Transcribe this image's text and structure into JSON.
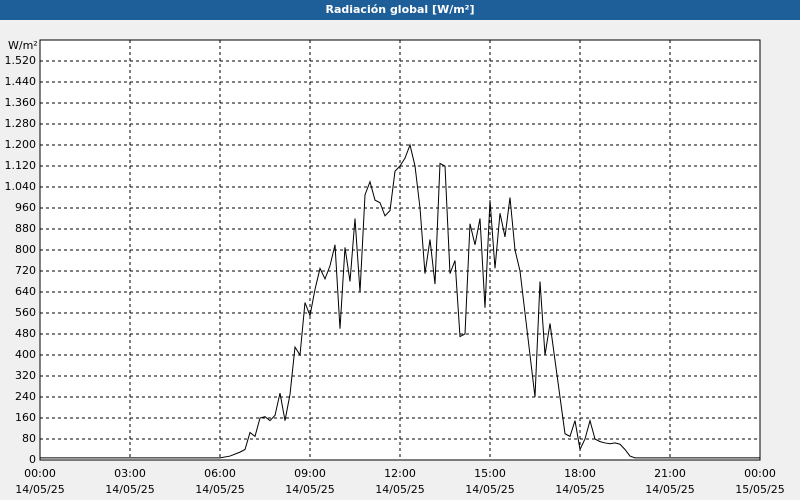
{
  "chart_data": {
    "type": "line",
    "title": "Radiación global [W/m²]",
    "y_label": "W/m²",
    "x": [
      0,
      360,
      380,
      400,
      410,
      420,
      430,
      440,
      450,
      460,
      470,
      480,
      490,
      500,
      510,
      520,
      530,
      540,
      550,
      560,
      570,
      580,
      590,
      600,
      610,
      620,
      630,
      640,
      650,
      660,
      670,
      680,
      690,
      700,
      710,
      720,
      730,
      740,
      750,
      760,
      770,
      780,
      790,
      800,
      810,
      820,
      830,
      840,
      850,
      860,
      870,
      880,
      890,
      900,
      910,
      920,
      930,
      940,
      950,
      960,
      970,
      980,
      990,
      1000,
      1010,
      1020,
      1030,
      1040,
      1050,
      1060,
      1070,
      1080,
      1090,
      1100,
      1110,
      1120,
      1130,
      1140,
      1150,
      1160,
      1170,
      1180,
      1190,
      1440
    ],
    "series": [
      {
        "name": "Radiación global",
        "color": "#000000",
        "values": [
          8,
          8,
          15,
          30,
          40,
          105,
          90,
          160,
          165,
          150,
          170,
          255,
          150,
          250,
          430,
          400,
          600,
          550,
          650,
          730,
          690,
          740,
          820,
          500,
          810,
          680,
          920,
          640,
          1010,
          1060,
          990,
          980,
          930,
          950,
          1100,
          1120,
          1150,
          1200,
          1120,
          960,
          710,
          840,
          670,
          1130,
          1120,
          710,
          760,
          470,
          480,
          900,
          820,
          920,
          580,
          990,
          730,
          940,
          850,
          1000,
          800,
          720,
          560,
          400,
          240,
          680,
          400,
          520,
          380,
          240,
          100,
          90,
          150,
          40,
          80,
          150,
          80,
          70,
          65,
          62,
          65,
          60,
          40,
          15,
          8,
          8
        ]
      }
    ],
    "xlim": [
      0,
      1440
    ],
    "ylim": [
      0,
      1600
    ],
    "xticks": [
      {
        "value": 0,
        "label": "00:00",
        "date": "14/05/25"
      },
      {
        "value": 180,
        "label": "03:00",
        "date": "14/05/25"
      },
      {
        "value": 360,
        "label": "06:00",
        "date": "14/05/25"
      },
      {
        "value": 540,
        "label": "09:00",
        "date": "14/05/25"
      },
      {
        "value": 720,
        "label": "12:00",
        "date": "14/05/25"
      },
      {
        "value": 900,
        "label": "15:00",
        "date": "14/05/25"
      },
      {
        "value": 1080,
        "label": "18:00",
        "date": "14/05/25"
      },
      {
        "value": 1260,
        "label": "21:00",
        "date": "14/05/25"
      },
      {
        "value": 1440,
        "label": "00:00",
        "date": "15/05/25"
      }
    ],
    "yticks": [
      0,
      80,
      160,
      240,
      320,
      400,
      480,
      560,
      640,
      720,
      800,
      880,
      960,
      {
        "value": 1040,
        "label": "1.040"
      },
      {
        "value": 1120,
        "label": "1.120"
      },
      {
        "value": 1200,
        "label": "1.200"
      },
      {
        "value": 1280,
        "label": "1.280"
      },
      {
        "value": 1360,
        "label": "1.360"
      },
      {
        "value": 1440,
        "label": "1.440"
      },
      {
        "value": 1520,
        "label": "1.520"
      }
    ],
    "grid": true
  }
}
